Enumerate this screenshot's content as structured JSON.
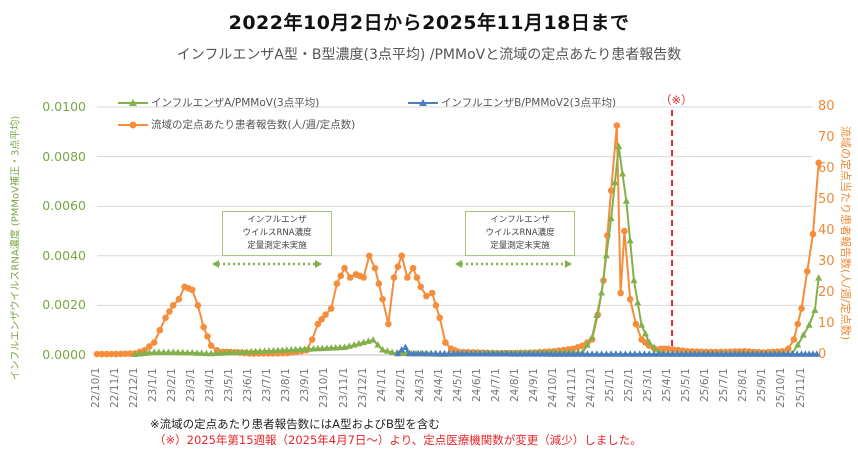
{
  "header": {
    "title": "2022年10月2日から2025年11月18日まで",
    "subtitle": "インフルエンザA型・B型濃度(3点平均) /PMMoVと流域の定点あたり患者報告数"
  },
  "axes": {
    "left_label": "インフルエンザウイルスRNA濃度 (PMMoV補正・3点平均)",
    "right_label": "流域の定点当たり患者報告数(人/週/定点数)",
    "left_ticks": [
      "0.0000",
      "0.0020",
      "0.0040",
      "0.0060",
      "0.0080",
      "0.0100"
    ],
    "right_ticks": [
      "0",
      "10",
      "20",
      "30",
      "40",
      "50",
      "60",
      "70",
      "80"
    ]
  },
  "legend": {
    "a": "インフルエンザA/PMMoV(3点平均)",
    "b": "インフルエンザB/PMMoV2(3点平均)",
    "patients": "流域の定点あたり患者報告数(人/週/定点数)"
  },
  "annotations": {
    "box1": [
      "インフルエンザ",
      "ウイルスRNA濃度",
      "定量測定未実施"
    ],
    "box2": [
      "インフルエンザ",
      "ウイルスRNA濃度",
      "定量測定未実施"
    ],
    "marker": "（※）"
  },
  "footer": {
    "note1": "※流域の定点あたり患者報告数にはA型およびB型を含む",
    "note2": "（※）2025年第15週報（2025年4月7日～）より、定点医療機関数が変更（減少）しました。"
  },
  "colors": {
    "a": "#84b04c",
    "b": "#4a7ebf",
    "patients": "#f58d3c",
    "marker": "#e6262b",
    "grid": "#d9d9d9"
  },
  "chart_data": {
    "type": "line",
    "title": "2022年10月2日から2025年11月18日まで",
    "subtitle": "インフルエンザA型・B型濃度(3点平均) /PMMoVと流域の定点あたり患者報告数",
    "xlabel": "",
    "ylabel": "インフルエンザウイルスRNA濃度 (PMMoV補正・3点平均)",
    "y2label": "流域の定点当たり患者報告数(人/週/定点数)",
    "ylim": [
      0,
      0.01
    ],
    "y2lim": [
      0,
      80
    ],
    "grid": true,
    "legend_position": "top",
    "x_ticks": [
      "22/10/1",
      "22/11/1",
      "22/12/1",
      "23/1/1",
      "23/2/1",
      "23/3/1",
      "23/4/1",
      "23/5/1",
      "23/6/1",
      "23/7/1",
      "23/8/1",
      "23/9/1",
      "23/10/1",
      "23/11/1",
      "23/12/1",
      "24/1/1",
      "24/2/1",
      "24/3/1",
      "24/4/1",
      "24/5/1",
      "24/6/1",
      "24/7/1",
      "24/8/1",
      "24/9/1",
      "24/10/1",
      "24/11/1",
      "24/12/1",
      "25/1/1",
      "25/2/1",
      "25/3/1",
      "25/4/1",
      "25/5/1",
      "25/6/1",
      "25/7/1",
      "25/8/1",
      "25/9/1",
      "25/10/1",
      "25/11/1"
    ],
    "series": [
      {
        "name": "流域の定点あたり患者報告数(人/週/定点数)",
        "axis": "right",
        "x_month_index": [
          0,
          1,
          2,
          2.5,
          3,
          3.3,
          3.6,
          4,
          4.3,
          4.6,
          5,
          5.3,
          5.6,
          6,
          6.3,
          6.6,
          7,
          8,
          9,
          10,
          11,
          11.3,
          11.6,
          12,
          12.3,
          12.6,
          13,
          13.3,
          13.6,
          14,
          14.3,
          14.6,
          15,
          15.3,
          15.6,
          16,
          16.3,
          16.6,
          17,
          17.3,
          17.6,
          18,
          18.3,
          18.6,
          19,
          20,
          21,
          22,
          23,
          24,
          25,
          25.5,
          26,
          26.3,
          26.6,
          27,
          27.3,
          27.5,
          27.7,
          28,
          28.3,
          28.6,
          29,
          29.3,
          29.6,
          30,
          31,
          32,
          33,
          34,
          35,
          36,
          36.3,
          36.6,
          37,
          37.3,
          37.6,
          37.9
        ],
        "values": [
          0.3,
          0.3,
          0.5,
          1.5,
          4,
          8,
          12,
          16,
          18,
          22,
          21,
          16,
          9,
          3,
          1.5,
          1,
          1,
          0.5,
          0.5,
          0.6,
          1.5,
          5,
          10,
          13,
          15,
          23,
          28,
          25,
          26,
          25,
          32,
          28,
          18,
          10,
          25,
          32,
          25,
          28,
          22,
          19,
          20,
          12,
          4,
          2,
          1,
          0.8,
          0.6,
          0.6,
          0.8,
          1.2,
          2,
          3,
          5,
          13,
          24,
          53,
          74,
          20,
          40,
          18,
          10,
          5,
          3,
          2,
          2,
          2,
          1.2,
          1.0,
          1.0,
          1.2,
          0.8,
          1.2,
          2,
          5,
          15,
          27,
          39,
          62
        ]
      },
      {
        "name": "インフルエンザA/PMMoV(3点平均)",
        "axis": "left",
        "x_month_index": [
          2,
          3,
          4,
          5,
          6,
          13,
          13.5,
          14,
          14.5,
          15,
          15.5,
          16,
          17,
          18,
          25.5,
          26,
          26.5,
          27,
          27.4,
          27.8,
          28.2,
          28.6,
          29,
          29.5,
          30,
          36.5,
          36.8,
          37.1,
          37.4,
          37.7,
          37.9
        ],
        "values": [
          2e-05,
          0.0001,
          0.0001,
          8e-05,
          5e-05,
          0.0003,
          0.0004,
          0.0005,
          0.0006,
          0.0002,
          0.0001,
          6e-05,
          5e-05,
          3e-05,
          0.0001,
          0.0007,
          0.0025,
          0.0055,
          0.0084,
          0.0062,
          0.003,
          0.0012,
          0.0005,
          0.0001,
          5e-05,
          5e-05,
          0.0004,
          0.0008,
          0.0012,
          0.0018,
          0.0031
        ]
      },
      {
        "name": "インフルエンザB/PMMoV2(3点平均)",
        "axis": "left",
        "x_month_index": [
          15.8,
          16,
          16.2,
          16.4,
          25,
          26,
          27,
          28,
          29,
          30,
          37,
          37.4,
          37.8
        ],
        "values": [
          5e-05,
          0.0002,
          0.0003,
          5e-05,
          3e-05,
          3e-05,
          3e-05,
          3e-05,
          3e-05,
          3e-05,
          3e-05,
          3e-05,
          3e-05
        ]
      }
    ],
    "annotations": [
      {
        "text": "インフルエンザ ウイルスRNA濃度 定量測定未実施",
        "x_range": [
          "23/4/1",
          "23/11/1"
        ]
      },
      {
        "text": "インフルエンザ ウイルスRNA濃度 定量測定未実施",
        "x_range": [
          "24/5/1",
          "24/11/1"
        ]
      },
      {
        "text": "（※）",
        "x": "25/4/7",
        "style": "red dashed vertical line"
      }
    ]
  }
}
